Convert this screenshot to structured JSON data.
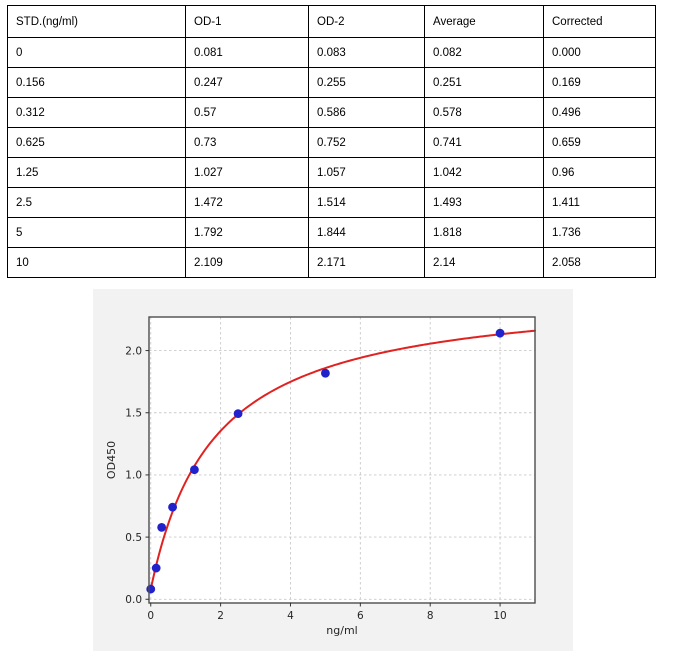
{
  "table": {
    "columns": [
      "STD.(ng/ml)",
      "OD-1",
      "OD-2",
      "Average",
      "Corrected"
    ],
    "rows": [
      [
        "0",
        "0.081",
        "0.083",
        "0.082",
        "0.000"
      ],
      [
        "0.156",
        "0.247",
        "0.255",
        "0.251",
        "0.169"
      ],
      [
        "0.312",
        "0.57",
        "0.586",
        "0.578",
        "0.496"
      ],
      [
        "0.625",
        "0.73",
        "0.752",
        "0.741",
        "0.659"
      ],
      [
        "1.25",
        "1.027",
        "1.057",
        "1.042",
        "0.96"
      ],
      [
        "2.5",
        "1.472",
        "1.514",
        "1.493",
        "1.411"
      ],
      [
        "5",
        "1.792",
        "1.844",
        "1.818",
        "1.736"
      ],
      [
        "10",
        "2.109",
        "2.171",
        "2.14",
        "2.058"
      ]
    ]
  },
  "chart_data": {
    "type": "scatter",
    "title": "",
    "xlabel": "ng/ml",
    "ylabel": "OD450",
    "x": [
      0,
      0.156,
      0.312,
      0.625,
      1.25,
      2.5,
      5,
      10
    ],
    "y": [
      0.082,
      0.251,
      0.578,
      0.741,
      1.042,
      1.493,
      1.818,
      2.14
    ],
    "fit_curve": {
      "description": "hyperbolic fit y = d - amp / (1 + x/c)",
      "d": 2.5,
      "amp": 2.42,
      "c": 1.8,
      "x_range": [
        0,
        11
      ]
    },
    "xticks": [
      "0",
      "2",
      "4",
      "6",
      "8",
      "10"
    ],
    "xtick_values": [
      0,
      2,
      4,
      6,
      8,
      10
    ],
    "yticks": [
      "0.0",
      "0.5",
      "1.0",
      "1.5",
      "2.0"
    ],
    "ytick_values": [
      0,
      0.5,
      1.0,
      1.5,
      2.0
    ],
    "xlim": [
      -0.05,
      11.0
    ],
    "ylim": [
      -0.03,
      2.27
    ],
    "grid": true,
    "legend": "none",
    "colors": {
      "curve": "#e02220",
      "marker": "#2222cc",
      "figure_bg": "#f2f2f2",
      "plot_bg": "#ffffff",
      "grid": "#c9c9c9",
      "spine": "#4d4d4d",
      "tick_label": "#262626"
    }
  }
}
